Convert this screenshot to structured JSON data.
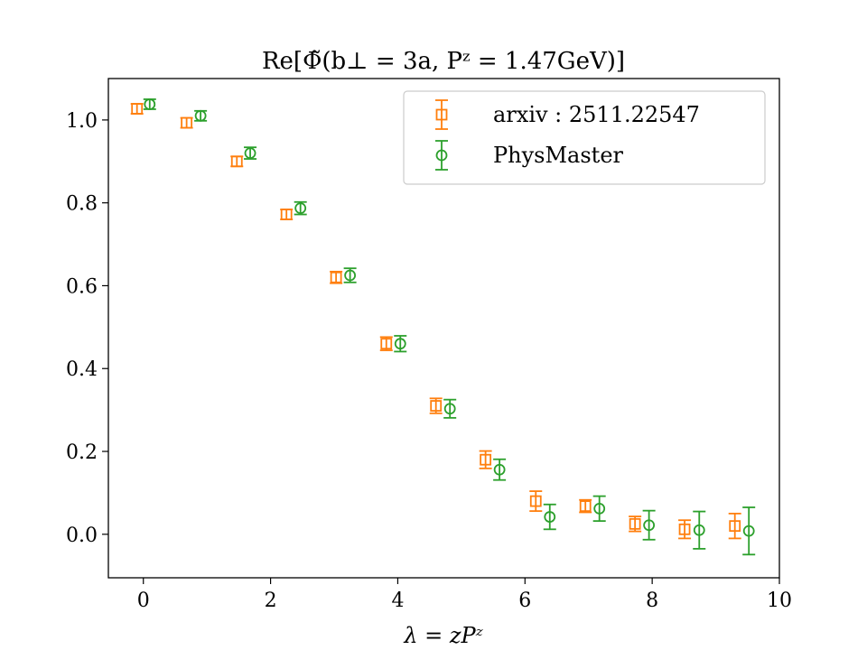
{
  "chart_data": {
    "type": "scatter",
    "title": "Re[Φ̃(b⊥ = 3a, Pᶻ = 1.47GeV)]",
    "xlabel": "λ = zPᶻ",
    "ylabel": "",
    "xlim": [
      -0.55,
      10.0
    ],
    "ylim": [
      -0.105,
      1.1
    ],
    "x_ticks": [
      0,
      2,
      4,
      6,
      8,
      10
    ],
    "y_ticks": [
      0.0,
      0.2,
      0.4,
      0.6,
      0.8,
      1.0
    ],
    "x_tick_labels": [
      "0",
      "2",
      "4",
      "6",
      "8",
      "10"
    ],
    "y_tick_labels": [
      "0.0",
      "0.2",
      "0.4",
      "0.6",
      "0.8",
      "1.0"
    ],
    "grid": false,
    "legend_position": "top-right",
    "series": [
      {
        "name": "arxiv : 2511.22547",
        "marker": "square",
        "color": "#ff7f0e",
        "points": [
          {
            "x": -0.1,
            "y": 1.027,
            "err": 0.012
          },
          {
            "x": 0.68,
            "y": 0.993,
            "err": 0.012
          },
          {
            "x": 1.47,
            "y": 0.9,
            "err": 0.012
          },
          {
            "x": 2.25,
            "y": 0.772,
            "err": 0.012
          },
          {
            "x": 3.03,
            "y": 0.62,
            "err": 0.014
          },
          {
            "x": 3.82,
            "y": 0.46,
            "err": 0.016
          },
          {
            "x": 4.6,
            "y": 0.31,
            "err": 0.018
          },
          {
            "x": 5.38,
            "y": 0.18,
            "err": 0.021
          },
          {
            "x": 6.17,
            "y": 0.08,
            "err": 0.024
          },
          {
            "x": 6.95,
            "y": 0.068,
            "err": 0.015
          },
          {
            "x": 7.73,
            "y": 0.025,
            "err": 0.018
          },
          {
            "x": 8.51,
            "y": 0.012,
            "err": 0.022
          },
          {
            "x": 9.3,
            "y": 0.02,
            "err": 0.03
          }
        ]
      },
      {
        "name": "PhysMaster",
        "marker": "circle",
        "color": "#2ca02c",
        "points": [
          {
            "x": 0.1,
            "y": 1.038,
            "err": 0.012
          },
          {
            "x": 0.9,
            "y": 1.01,
            "err": 0.012
          },
          {
            "x": 1.68,
            "y": 0.92,
            "err": 0.014
          },
          {
            "x": 2.47,
            "y": 0.787,
            "err": 0.015
          },
          {
            "x": 3.25,
            "y": 0.625,
            "err": 0.017
          },
          {
            "x": 4.04,
            "y": 0.46,
            "err": 0.019
          },
          {
            "x": 4.82,
            "y": 0.303,
            "err": 0.022
          },
          {
            "x": 5.6,
            "y": 0.156,
            "err": 0.025
          },
          {
            "x": 6.39,
            "y": 0.042,
            "err": 0.03
          },
          {
            "x": 7.17,
            "y": 0.062,
            "err": 0.03
          },
          {
            "x": 7.95,
            "y": 0.022,
            "err": 0.035
          },
          {
            "x": 8.74,
            "y": 0.01,
            "err": 0.045
          },
          {
            "x": 9.52,
            "y": 0.008,
            "err": 0.057
          }
        ]
      }
    ]
  }
}
